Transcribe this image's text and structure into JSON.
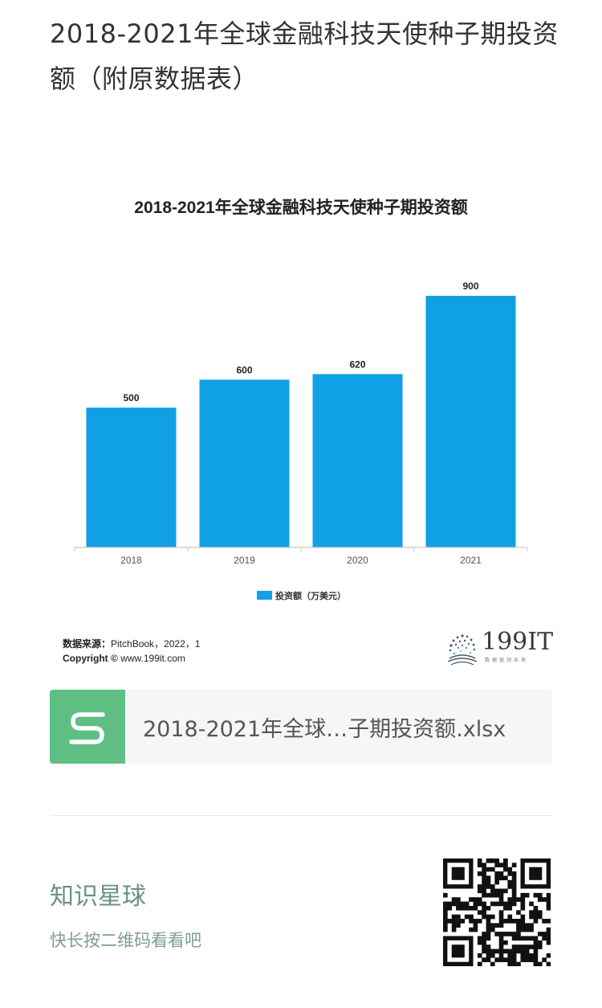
{
  "article": {
    "title": "2018-2021年全球金融科技天使种子期投资额（附原数据表）"
  },
  "chart": {
    "source_label": "数据来源：",
    "source_text": "PitchBook，2022，1",
    "copyright_label": "Copyright ©",
    "copyright_text": "www.199it.com",
    "logo_text": "199IT",
    "logo_tagline": "数据驱动未来"
  },
  "chart_data": {
    "type": "bar",
    "title": "2018-2021年全球金融科技天使种子期投资额",
    "categories": [
      "2018",
      "2019",
      "2020",
      "2021"
    ],
    "series": [
      {
        "name": "投资额（万美元）",
        "values": [
          500,
          600,
          620,
          900
        ]
      }
    ],
    "data_labels": [
      "500",
      "600",
      "620",
      "900"
    ],
    "ylim": [
      0,
      900
    ],
    "grid": false,
    "legend_position": "bottom",
    "bar_color": "#10a0e6"
  },
  "attachment": {
    "file_name": "2018-2021年全球…子期投资额.xlsx",
    "icon": "spreadsheet-s-icon",
    "icon_color": "#5fbf83"
  },
  "footer": {
    "title": "知识星球",
    "hint": "快长按二维码看看吧",
    "qr_icon": "qr-code-icon"
  }
}
